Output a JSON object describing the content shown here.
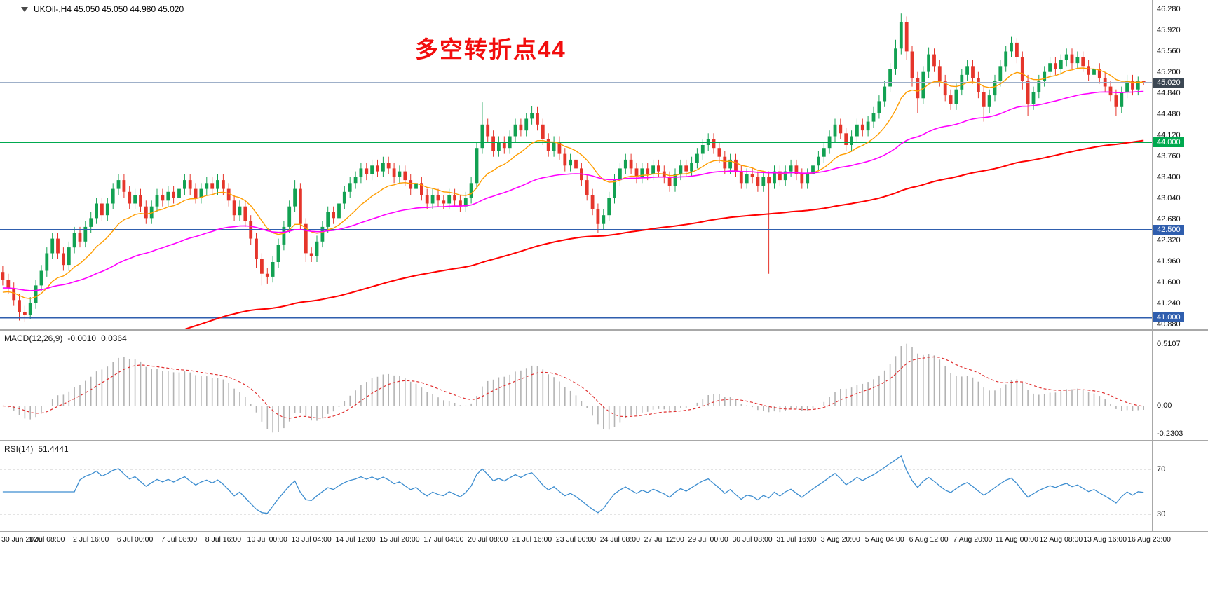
{
  "window": {
    "symbol_header": "UKOil-,H4 45.050 45.050 44.980 45.020"
  },
  "annotation": {
    "text": "多空转折点44",
    "color": "#f20d0d"
  },
  "chart_data": {
    "type": "candlestick",
    "symbol": "UKOil-",
    "timeframe": "H4",
    "current_bar": {
      "open": "45.050",
      "high": "45.050",
      "low": "44.980",
      "close": "45.020"
    },
    "colors": {
      "up": "#12a152",
      "down": "#e5352b",
      "background": "#ffffff",
      "separator": "#a8a8a8",
      "axis_text": "#111111"
    },
    "price_axis": {
      "max": 46.43,
      "min": 40.8,
      "ticks": [
        "46.280",
        "45.920",
        "45.560",
        "45.200",
        "44.840",
        "44.480",
        "44.120",
        "43.760",
        "43.400",
        "43.040",
        "42.680",
        "42.320",
        "41.960",
        "41.600",
        "41.240",
        "40.880"
      ]
    },
    "time_axis": [
      "30 Jun 2020",
      "1 Jul 08:00",
      "2 Jul 16:00",
      "6 Jul 00:00",
      "7 Jul 08:00",
      "8 Jul 16:00",
      "10 Jul 00:00",
      "13 Jul 04:00",
      "14 Jul 12:00",
      "15 Jul 20:00",
      "17 Jul 04:00",
      "20 Jul 08:00",
      "21 Jul 16:00",
      "23 Jul 00:00",
      "24 Jul 08:00",
      "27 Jul 12:00",
      "29 Jul 00:00",
      "30 Jul 08:00",
      "31 Jul 16:00",
      "3 Aug 20:00",
      "5 Aug 04:00",
      "6 Aug 12:00",
      "7 Aug 20:00",
      "11 Aug 00:00",
      "12 Aug 08:00",
      "13 Aug 16:00",
      "16 Aug 23:00"
    ],
    "bars_per_time_label": 8,
    "hlines": [
      {
        "price": 45.02,
        "label": "45.020",
        "line_color": "#9fb0c9",
        "badge_color": "#3c4753",
        "width": 1
      },
      {
        "price": 44.0,
        "label": "44.000",
        "line_color": "#00a94f",
        "badge_color": "#00a94f",
        "width": 2
      },
      {
        "price": 42.5,
        "label": "42.500",
        "line_color": "#2f5eae",
        "badge_color": "#2f5eae",
        "width": 2
      },
      {
        "price": 41.0,
        "label": "41.000",
        "line_color": "#2f5eae",
        "badge_color": "#2f5eae",
        "width": 2
      }
    ],
    "moving_averages": [
      {
        "name": "ma-fast",
        "color": "#ff9d00",
        "period": 14,
        "seed": 41.4,
        "width": 1.4
      },
      {
        "name": "ma-medium",
        "color": "#ff00ff",
        "period": 55,
        "seed": 41.5,
        "width": 1.6
      },
      {
        "name": "ma-slow",
        "color": "#ff0000",
        "period": 150,
        "seed": 39.8,
        "width": 2
      }
    ],
    "indicators": [
      {
        "name": "MACD",
        "label": "MACD(12,26,9)",
        "values": [
          "-0.0010",
          "0.0364"
        ],
        "fast": 12,
        "slow": 26,
        "signal": 9,
        "hist_color": "#b3b3b3",
        "signal_color": "#e03030",
        "axis": {
          "max": 0.62,
          "min": -0.28,
          "ticks": [
            {
              "v": 0.5107,
              "label": "0.5107"
            },
            {
              "v": 0,
              "label": "0.00"
            },
            {
              "v": -0.2303,
              "label": "-0.2303"
            }
          ]
        }
      },
      {
        "name": "RSI",
        "label": "RSI(14)",
        "value": "51.4441",
        "period": 14,
        "color": "#3e8ed0",
        "levels": [
          70,
          30
        ],
        "axis": {
          "max": 95,
          "min": 15,
          "ticks": [
            {
              "v": 70,
              "label": "70"
            },
            {
              "v": 30,
              "label": "30"
            }
          ]
        }
      }
    ],
    "candles": [
      [
        41.78,
        41.88,
        41.55,
        41.65
      ],
      [
        41.65,
        41.75,
        41.4,
        41.5
      ],
      [
        41.5,
        41.6,
        41.2,
        41.3
      ],
      [
        41.3,
        41.4,
        40.95,
        41.1
      ],
      [
        41.1,
        41.2,
        40.92,
        41.05
      ],
      [
        41.05,
        41.35,
        40.98,
        41.25
      ],
      [
        41.25,
        41.65,
        41.15,
        41.55
      ],
      [
        41.55,
        41.9,
        41.45,
        41.8
      ],
      [
        41.8,
        42.2,
        41.7,
        42.1
      ],
      [
        42.1,
        42.45,
        42.0,
        42.35
      ],
      [
        42.35,
        42.45,
        42.0,
        42.1
      ],
      [
        42.1,
        42.2,
        41.8,
        41.9
      ],
      [
        41.9,
        42.3,
        41.8,
        42.2
      ],
      [
        42.2,
        42.55,
        42.1,
        42.45
      ],
      [
        42.45,
        42.55,
        42.2,
        42.3
      ],
      [
        42.3,
        42.65,
        42.2,
        42.55
      ],
      [
        42.55,
        42.8,
        42.45,
        42.7
      ],
      [
        42.7,
        43.05,
        42.6,
        42.95
      ],
      [
        42.95,
        43.05,
        42.65,
        42.75
      ],
      [
        42.75,
        43.05,
        42.65,
        42.95
      ],
      [
        42.95,
        43.3,
        42.85,
        43.2
      ],
      [
        43.2,
        43.45,
        43.1,
        43.35
      ],
      [
        43.35,
        43.45,
        43.05,
        43.15
      ],
      [
        43.15,
        43.25,
        42.85,
        42.95
      ],
      [
        42.95,
        43.2,
        42.85,
        43.1
      ],
      [
        43.1,
        43.2,
        42.8,
        42.9
      ],
      [
        42.9,
        43.0,
        42.6,
        42.7
      ],
      [
        42.7,
        43.0,
        42.6,
        42.9
      ],
      [
        42.9,
        43.2,
        42.8,
        43.1
      ],
      [
        43.1,
        43.2,
        42.9,
        43.0
      ],
      [
        43.0,
        43.25,
        42.9,
        43.15
      ],
      [
        43.15,
        43.25,
        42.95,
        43.05
      ],
      [
        43.05,
        43.3,
        42.95,
        43.2
      ],
      [
        43.2,
        43.45,
        43.1,
        43.35
      ],
      [
        43.35,
        43.45,
        43.1,
        43.2
      ],
      [
        43.2,
        43.3,
        42.95,
        43.05
      ],
      [
        43.05,
        43.3,
        42.95,
        43.2
      ],
      [
        43.2,
        43.4,
        43.1,
        43.3
      ],
      [
        43.3,
        43.4,
        43.1,
        43.2
      ],
      [
        43.2,
        43.45,
        43.1,
        43.35
      ],
      [
        43.35,
        43.45,
        43.1,
        43.2
      ],
      [
        43.2,
        43.3,
        42.9,
        43.0
      ],
      [
        43.0,
        43.1,
        42.65,
        42.75
      ],
      [
        42.75,
        43.0,
        42.65,
        42.9
      ],
      [
        42.9,
        43.0,
        42.55,
        42.65
      ],
      [
        42.65,
        42.75,
        42.25,
        42.35
      ],
      [
        42.35,
        42.45,
        41.85,
        42.0
      ],
      [
        42.0,
        42.1,
        41.55,
        41.75
      ],
      [
        41.75,
        41.85,
        41.58,
        41.7
      ],
      [
        41.7,
        42.05,
        41.6,
        41.95
      ],
      [
        41.95,
        42.35,
        41.85,
        42.25
      ],
      [
        42.25,
        42.65,
        42.15,
        42.55
      ],
      [
        42.55,
        43.0,
        42.45,
        42.9
      ],
      [
        42.9,
        43.35,
        42.8,
        43.2
      ],
      [
        43.2,
        43.3,
        42.5,
        42.6
      ],
      [
        42.6,
        42.7,
        41.95,
        42.1
      ],
      [
        42.1,
        42.2,
        41.95,
        42.05
      ],
      [
        42.05,
        42.4,
        41.95,
        42.3
      ],
      [
        42.3,
        42.65,
        42.2,
        42.55
      ],
      [
        42.55,
        42.9,
        42.45,
        42.8
      ],
      [
        42.8,
        42.9,
        42.6,
        42.7
      ],
      [
        42.7,
        43.05,
        42.6,
        42.95
      ],
      [
        42.95,
        43.25,
        42.85,
        43.15
      ],
      [
        43.15,
        43.4,
        43.05,
        43.3
      ],
      [
        43.3,
        43.5,
        43.2,
        43.4
      ],
      [
        43.4,
        43.65,
        43.3,
        43.55
      ],
      [
        43.55,
        43.65,
        43.35,
        43.45
      ],
      [
        43.45,
        43.7,
        43.35,
        43.6
      ],
      [
        43.6,
        43.7,
        43.4,
        43.5
      ],
      [
        43.5,
        43.75,
        43.4,
        43.65
      ],
      [
        43.65,
        43.75,
        43.45,
        43.55
      ],
      [
        43.55,
        43.65,
        43.3,
        43.4
      ],
      [
        43.4,
        43.6,
        43.3,
        43.5
      ],
      [
        43.5,
        43.6,
        43.25,
        43.35
      ],
      [
        43.35,
        43.45,
        43.1,
        43.2
      ],
      [
        43.2,
        43.4,
        43.1,
        43.3
      ],
      [
        43.3,
        43.4,
        43.0,
        43.1
      ],
      [
        43.1,
        43.2,
        42.85,
        42.95
      ],
      [
        42.95,
        43.2,
        42.85,
        43.1
      ],
      [
        43.1,
        43.2,
        42.9,
        43.0
      ],
      [
        43.0,
        43.1,
        42.85,
        42.95
      ],
      [
        42.95,
        43.2,
        42.85,
        43.1
      ],
      [
        43.1,
        43.2,
        42.9,
        43.0
      ],
      [
        43.0,
        43.1,
        42.8,
        42.9
      ],
      [
        42.9,
        43.15,
        42.8,
        43.05
      ],
      [
        43.05,
        43.4,
        42.95,
        43.3
      ],
      [
        43.3,
        44.0,
        43.2,
        43.9
      ],
      [
        43.9,
        44.68,
        43.8,
        44.3
      ],
      [
        44.3,
        44.4,
        44.0,
        44.1
      ],
      [
        44.1,
        44.2,
        43.75,
        43.85
      ],
      [
        43.85,
        44.1,
        43.75,
        44.0
      ],
      [
        44.0,
        44.1,
        43.8,
        43.9
      ],
      [
        43.9,
        44.2,
        43.8,
        44.1
      ],
      [
        44.1,
        44.4,
        44.0,
        44.3
      ],
      [
        44.3,
        44.4,
        44.1,
        44.2
      ],
      [
        44.2,
        44.5,
        44.1,
        44.4
      ],
      [
        44.4,
        44.62,
        44.3,
        44.5
      ],
      [
        44.5,
        44.6,
        44.2,
        44.3
      ],
      [
        44.3,
        44.4,
        43.95,
        44.05
      ],
      [
        44.05,
        44.15,
        43.75,
        43.85
      ],
      [
        43.85,
        44.1,
        43.75,
        44.0
      ],
      [
        44.0,
        44.1,
        43.7,
        43.8
      ],
      [
        43.8,
        43.9,
        43.5,
        43.6
      ],
      [
        43.6,
        43.8,
        43.5,
        43.7
      ],
      [
        43.7,
        43.8,
        43.45,
        43.55
      ],
      [
        43.55,
        43.65,
        43.25,
        43.35
      ],
      [
        43.35,
        43.45,
        43.0,
        43.1
      ],
      [
        43.1,
        43.2,
        42.75,
        42.85
      ],
      [
        42.85,
        42.95,
        42.45,
        42.6
      ],
      [
        42.6,
        42.85,
        42.5,
        42.75
      ],
      [
        42.75,
        43.15,
        42.65,
        43.05
      ],
      [
        43.05,
        43.45,
        42.95,
        43.35
      ],
      [
        43.35,
        43.65,
        43.25,
        43.55
      ],
      [
        43.55,
        43.8,
        43.45,
        43.7
      ],
      [
        43.7,
        43.8,
        43.45,
        43.55
      ],
      [
        43.55,
        43.65,
        43.3,
        43.4
      ],
      [
        43.4,
        43.65,
        43.3,
        43.55
      ],
      [
        43.55,
        43.65,
        43.35,
        43.45
      ],
      [
        43.45,
        43.7,
        43.35,
        43.6
      ],
      [
        43.6,
        43.7,
        43.4,
        43.5
      ],
      [
        43.5,
        43.6,
        43.3,
        43.4
      ],
      [
        43.4,
        43.5,
        43.15,
        43.25
      ],
      [
        43.25,
        43.55,
        43.15,
        43.45
      ],
      [
        43.45,
        43.7,
        43.35,
        43.6
      ],
      [
        43.6,
        43.7,
        43.4,
        43.5
      ],
      [
        43.5,
        43.75,
        43.4,
        43.65
      ],
      [
        43.65,
        43.9,
        43.55,
        43.8
      ],
      [
        43.8,
        44.05,
        43.7,
        43.95
      ],
      [
        43.95,
        44.15,
        43.85,
        44.05
      ],
      [
        44.05,
        44.15,
        43.8,
        43.9
      ],
      [
        43.9,
        44.0,
        43.65,
        43.75
      ],
      [
        43.75,
        43.85,
        43.45,
        43.55
      ],
      [
        43.55,
        43.8,
        43.45,
        43.7
      ],
      [
        43.7,
        43.8,
        43.4,
        43.5
      ],
      [
        43.5,
        43.6,
        43.2,
        43.3
      ],
      [
        43.3,
        43.55,
        43.2,
        43.45
      ],
      [
        43.45,
        43.55,
        43.3,
        43.4
      ],
      [
        43.4,
        43.5,
        43.15,
        43.25
      ],
      [
        43.25,
        43.5,
        43.15,
        43.4
      ],
      [
        43.4,
        43.5,
        41.75,
        43.3
      ],
      [
        43.3,
        43.6,
        43.2,
        43.5
      ],
      [
        43.5,
        43.6,
        43.25,
        43.35
      ],
      [
        43.35,
        43.6,
        43.25,
        43.5
      ],
      [
        43.5,
        43.7,
        43.4,
        43.6
      ],
      [
        43.6,
        43.7,
        43.35,
        43.45
      ],
      [
        43.45,
        43.55,
        43.2,
        43.3
      ],
      [
        43.3,
        43.55,
        43.2,
        43.45
      ],
      [
        43.45,
        43.7,
        43.35,
        43.6
      ],
      [
        43.6,
        43.85,
        43.5,
        43.75
      ],
      [
        43.75,
        44.0,
        43.65,
        43.9
      ],
      [
        43.9,
        44.2,
        43.8,
        44.1
      ],
      [
        44.1,
        44.4,
        44.0,
        44.3
      ],
      [
        44.3,
        44.4,
        44.05,
        44.15
      ],
      [
        44.15,
        44.25,
        43.85,
        43.95
      ],
      [
        43.95,
        44.2,
        43.85,
        44.1
      ],
      [
        44.1,
        44.4,
        44.0,
        44.3
      ],
      [
        44.3,
        44.4,
        44.1,
        44.2
      ],
      [
        44.2,
        44.45,
        44.1,
        44.35
      ],
      [
        44.35,
        44.6,
        44.25,
        44.5
      ],
      [
        44.5,
        44.8,
        44.4,
        44.7
      ],
      [
        44.7,
        45.05,
        44.6,
        44.95
      ],
      [
        44.95,
        45.35,
        44.85,
        45.25
      ],
      [
        45.25,
        45.75,
        45.15,
        45.6
      ],
      [
        45.6,
        46.2,
        45.5,
        46.05
      ],
      [
        46.05,
        46.15,
        45.4,
        45.55
      ],
      [
        45.55,
        45.65,
        44.95,
        45.1
      ],
      [
        45.1,
        45.2,
        44.5,
        44.75
      ],
      [
        44.75,
        45.3,
        44.65,
        45.2
      ],
      [
        45.2,
        45.62,
        45.1,
        45.5
      ],
      [
        45.5,
        45.6,
        45.2,
        45.3
      ],
      [
        45.3,
        45.4,
        44.95,
        45.05
      ],
      [
        45.05,
        45.15,
        44.7,
        44.8
      ],
      [
        44.8,
        44.9,
        44.55,
        44.65
      ],
      [
        44.65,
        45.0,
        44.55,
        44.9
      ],
      [
        44.9,
        45.25,
        44.8,
        45.15
      ],
      [
        45.15,
        45.4,
        45.05,
        45.3
      ],
      [
        45.3,
        45.4,
        45.0,
        45.1
      ],
      [
        45.1,
        45.2,
        44.75,
        44.85
      ],
      [
        44.85,
        44.95,
        44.35,
        44.6
      ],
      [
        44.6,
        44.9,
        44.5,
        44.8
      ],
      [
        44.8,
        45.15,
        44.7,
        45.05
      ],
      [
        45.05,
        45.4,
        44.95,
        45.3
      ],
      [
        45.3,
        45.65,
        45.2,
        45.55
      ],
      [
        45.55,
        45.8,
        45.45,
        45.7
      ],
      [
        45.7,
        45.78,
        45.35,
        45.45
      ],
      [
        45.45,
        45.55,
        44.9,
        45.05
      ],
      [
        45.05,
        45.15,
        44.45,
        44.65
      ],
      [
        44.65,
        44.95,
        44.55,
        44.85
      ],
      [
        44.85,
        45.15,
        44.75,
        45.05
      ],
      [
        45.05,
        45.3,
        44.95,
        45.2
      ],
      [
        45.2,
        45.45,
        45.1,
        45.35
      ],
      [
        45.35,
        45.45,
        45.15,
        45.25
      ],
      [
        45.25,
        45.5,
        45.15,
        45.4
      ],
      [
        45.4,
        45.6,
        45.3,
        45.5
      ],
      [
        45.5,
        45.6,
        45.25,
        45.35
      ],
      [
        45.35,
        45.55,
        45.25,
        45.45
      ],
      [
        45.45,
        45.55,
        45.2,
        45.3
      ],
      [
        45.3,
        45.4,
        45.05,
        45.15
      ],
      [
        45.15,
        45.35,
        45.05,
        45.25
      ],
      [
        45.25,
        45.35,
        45.0,
        45.1
      ],
      [
        45.1,
        45.2,
        44.85,
        44.95
      ],
      [
        44.95,
        45.05,
        44.7,
        44.8
      ],
      [
        44.8,
        44.9,
        44.45,
        44.6
      ],
      [
        44.6,
        44.95,
        44.5,
        44.85
      ],
      [
        44.85,
        45.15,
        44.75,
        45.05
      ],
      [
        45.05,
        45.15,
        44.8,
        44.9
      ],
      [
        44.9,
        45.12,
        44.8,
        45.05
      ],
      [
        45.05,
        45.05,
        44.98,
        45.02
      ]
    ]
  }
}
